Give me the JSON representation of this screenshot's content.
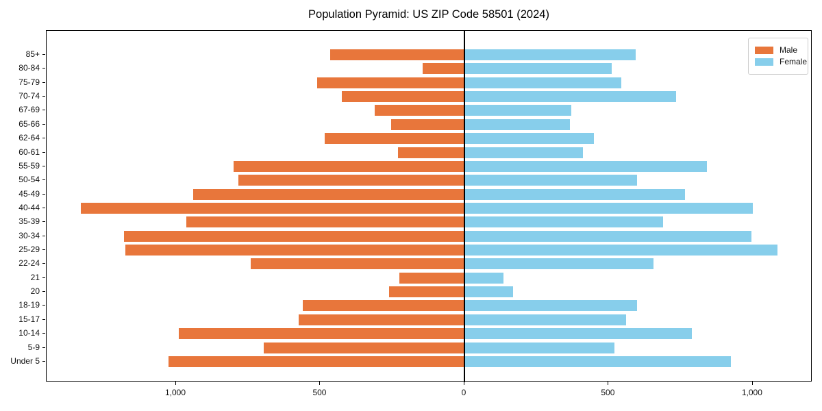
{
  "title": "Population Pyramid: US ZIP Code 58501 (2024)",
  "legend": {
    "male_label": "Male",
    "female_label": "Female"
  },
  "colors": {
    "male": "#E8763B",
    "female": "#87CEEB",
    "axis": "#000000",
    "zero_line": "#000000"
  },
  "chart_data": {
    "type": "bar",
    "orientation": "horizontal-population-pyramid",
    "title": "Population Pyramid: US ZIP Code 58501 (2024)",
    "categories_top_to_bottom": [
      "85+",
      "80-84",
      "75-79",
      "70-74",
      "67-69",
      "65-66",
      "62-64",
      "60-61",
      "55-59",
      "50-54",
      "45-49",
      "40-44",
      "35-39",
      "30-34",
      "25-29",
      "22-24",
      "21",
      "20",
      "18-19",
      "15-17",
      "10-14",
      "5-9",
      "Under 5"
    ],
    "series": [
      {
        "name": "Male",
        "side": "left",
        "color": "#E8763B",
        "values": [
          465,
          145,
          510,
          425,
          310,
          255,
          485,
          230,
          800,
          785,
          940,
          1330,
          965,
          1180,
          1175,
          740,
          225,
          260,
          560,
          575,
          990,
          695,
          1025
        ]
      },
      {
        "name": "Female",
        "side": "right",
        "color": "#87CEEB",
        "values": [
          595,
          510,
          545,
          735,
          370,
          365,
          450,
          410,
          840,
          600,
          765,
          1000,
          690,
          995,
          1085,
          655,
          135,
          170,
          600,
          560,
          790,
          520,
          925
        ]
      }
    ],
    "xlim": [
      -1449,
      1207
    ],
    "x_ticks": {
      "values": [
        -1000,
        -500,
        0,
        500,
        1000
      ],
      "labels": [
        "1,000",
        "500",
        "0",
        "500",
        "1,000"
      ]
    },
    "grid": false,
    "legend_position": "upper right",
    "zero_axis_line": true
  }
}
